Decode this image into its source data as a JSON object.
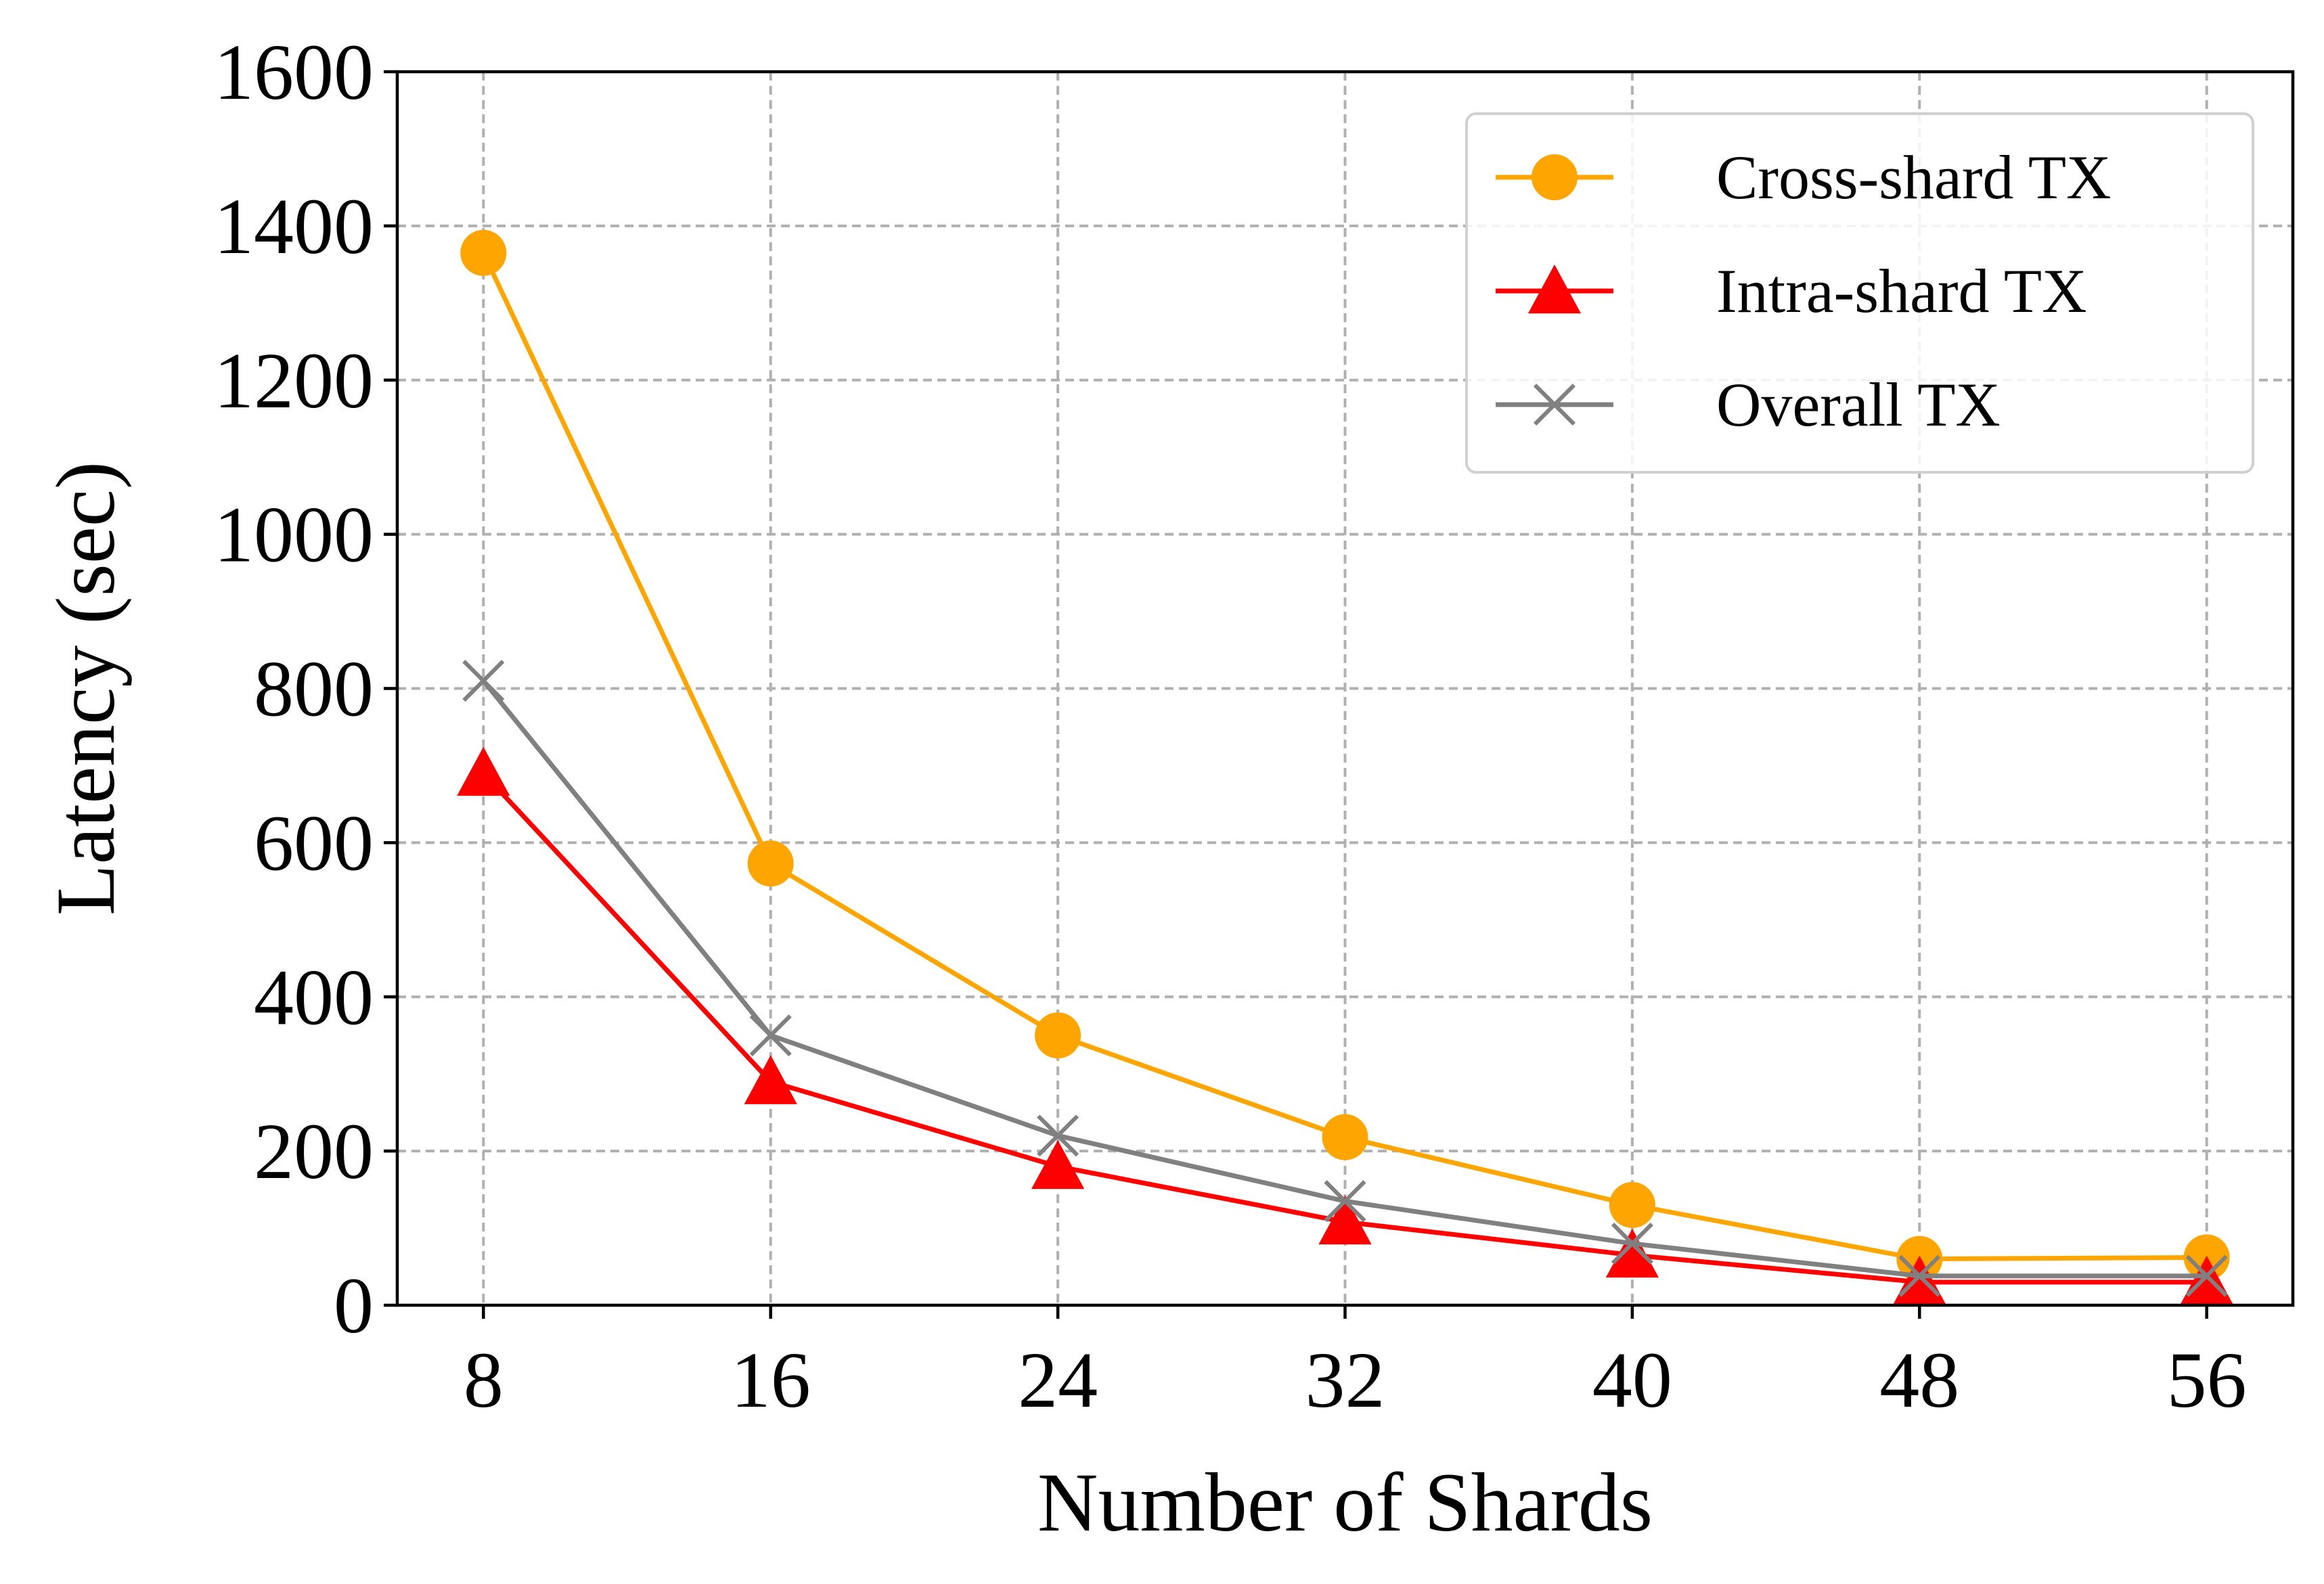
{
  "chart_data": {
    "type": "line",
    "xlabel": "Number of Shards",
    "ylabel": "Latency (sec)",
    "x": [
      8,
      16,
      24,
      32,
      40,
      48,
      56
    ],
    "xlim": [
      5.6,
      58.4
    ],
    "ylim": [
      0,
      1600
    ],
    "xticks": [
      "8",
      "16",
      "24",
      "32",
      "40",
      "48",
      "56"
    ],
    "yticks": [
      "0",
      "200",
      "400",
      "600",
      "800",
      "1000",
      "1200",
      "1400",
      "1600"
    ],
    "grid": true,
    "legend_position": "top-right",
    "series": [
      {
        "name": "Cross-shard TX",
        "marker": "circle",
        "color": "#FFA500",
        "values": [
          1365,
          573,
          350,
          218,
          130,
          60,
          62
        ]
      },
      {
        "name": "Intra-shard TX",
        "marker": "triangle",
        "color": "#FF0000",
        "values": [
          690,
          290,
          180,
          108,
          65,
          30,
          30
        ]
      },
      {
        "name": "Overall TX",
        "marker": "x",
        "color": "#808080",
        "values": [
          810,
          350,
          220,
          135,
          80,
          38,
          38
        ]
      }
    ]
  }
}
